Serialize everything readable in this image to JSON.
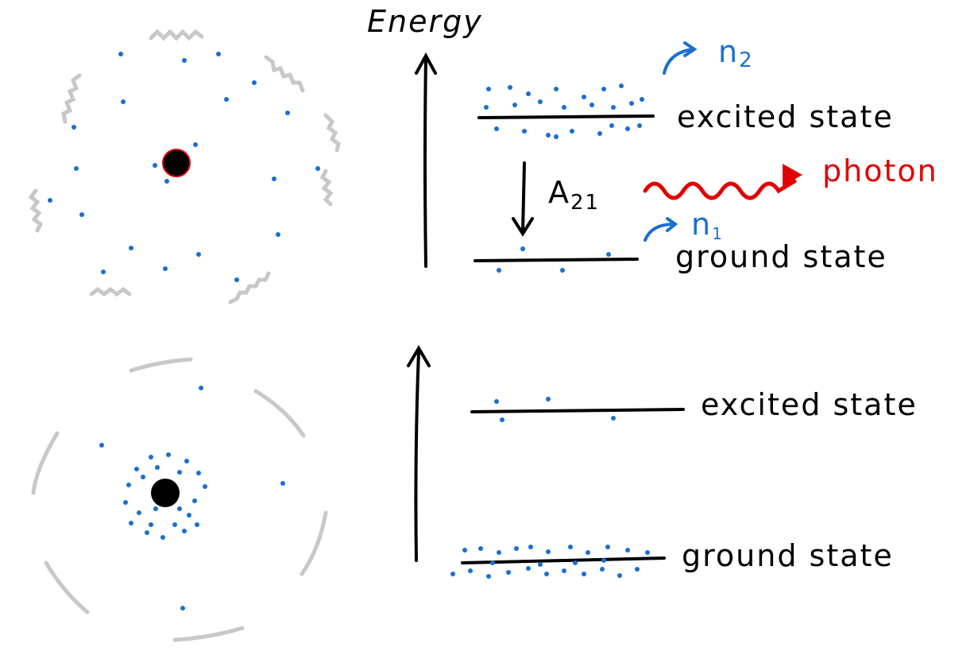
{
  "axis_label": "Energy",
  "top_diagram": {
    "excited_label": "excited state",
    "ground_label": "ground state",
    "transition_label": "A",
    "transition_subscript": "21",
    "photon_label": "photon",
    "n2_label": "n",
    "n2_subscript": "2",
    "n1_label": "n",
    "n1_subscript": "1"
  },
  "bottom_diagram": {
    "excited_label": "excited state",
    "ground_label": "ground state"
  },
  "colors": {
    "dots": "#1a6fd0",
    "photon": "#e00000",
    "lines": "#000000",
    "waves": "#c8c8c8"
  }
}
